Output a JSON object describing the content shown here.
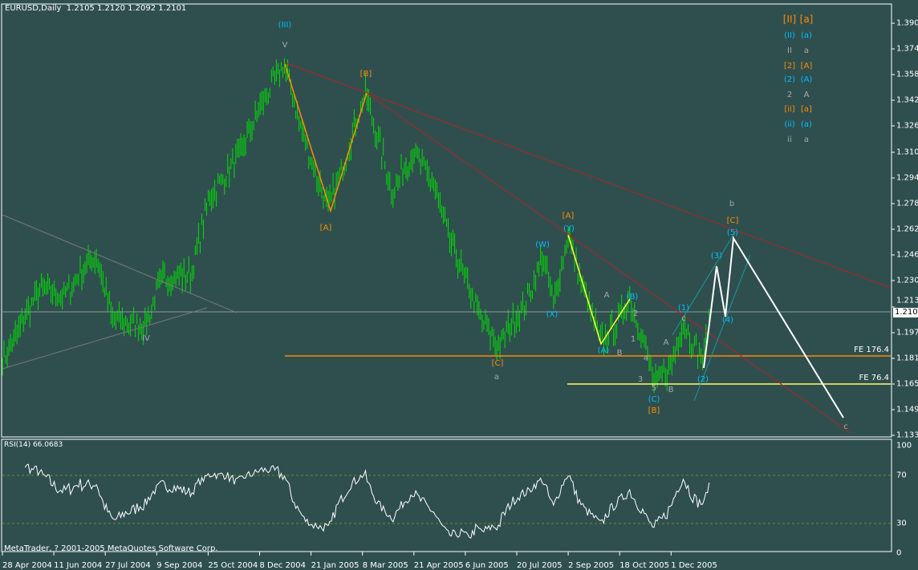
{
  "header": {
    "symbol_timeframe": "EURUSD,Daily",
    "ohlc": "1.2105 1.2120 1.2092 1.2101"
  },
  "copyright": "MetaTrader, ? 2001-2005 MetaQuotes Software Corp.",
  "colors": {
    "background": "#2f4f4f",
    "bars": "#00e000",
    "orange": "#ff8c00",
    "cyan": "#00bfff",
    "gray": "#a9a9a9",
    "trendline": "#b22222",
    "channel": "#1a9a9a"
  },
  "price_axis": [
    "1.3905",
    "1.3745",
    "1.3585",
    "1.3425",
    "1.3265",
    "1.3100",
    "1.2940",
    "1.2780",
    "1.2620",
    "1.2460",
    "1.2300",
    "1.2135",
    "1.1975",
    "1.1815",
    "1.1655",
    "1.1495",
    "1.1335"
  ],
  "current_price": "1.2101",
  "fibo": {
    "fe1764": "FE 176.4",
    "fe764": "FE 76.4"
  },
  "rsi": {
    "label": "RSI(14) 66.0683",
    "axis": [
      "100",
      "70",
      "30",
      "0"
    ]
  },
  "dates": [
    "28 Apr 2004",
    "11 Jun 2004",
    "27 Jul 2004",
    "9 Sep 2004",
    "25 Oct 2004",
    "8 Dec 2004",
    "21 Jan 2005",
    "8 Mar 2005",
    "21 Apr 2005",
    "6 Jun 2005",
    "20 Jul 2005",
    "2 Sep 2005",
    "18 Oct 2005",
    "1 Dec 2005"
  ],
  "wave_labels": {
    "III": "(III)",
    "V": "V",
    "B1": "[B]",
    "A1": "[A]",
    "IV": "IV",
    "C1": "[C]",
    "a1": "a",
    "A2": "[A]",
    "Y": "(Y)",
    "W": "(W)",
    "X": "(X)",
    "A3": "(A)",
    "B3": "(B)",
    "A4": "A",
    "B4": "B",
    "n2": "2",
    "n1": "1",
    "n4": "4",
    "n3": "3",
    "n5": "5",
    "C3": "(C)",
    "B2": "[B]",
    "A5": "A",
    "B5": "B",
    "p1": "(1)",
    "c1": "c",
    "p2": "(2)",
    "p3": "(3)",
    "p4": "(4)",
    "p5": "(5)",
    "C2": "[C]",
    "b": "b",
    "c2": "c"
  },
  "legend": [
    [
      "[II]",
      "[a]"
    ],
    [
      "(II)",
      "(a)"
    ],
    [
      "II",
      "a"
    ],
    [
      "[2]",
      "[A]"
    ],
    [
      "(2)",
      "(A)"
    ],
    [
      "2",
      "A"
    ],
    [
      "[ii]",
      "[a]"
    ],
    [
      "(ii)",
      "(a)"
    ],
    [
      "ii",
      "a"
    ]
  ],
  "chart_data": {
    "type": "ohlc",
    "symbol": "EURUSD",
    "timeframe": "Daily",
    "ylim": [
      1.1335,
      1.3905
    ],
    "price_path": [
      [
        0,
        1.18
      ],
      [
        8,
        1.195
      ],
      [
        23,
        1.225
      ],
      [
        38,
        1.22
      ],
      [
        48,
        1.235
      ],
      [
        58,
        1.245
      ],
      [
        68,
        1.205
      ],
      [
        88,
        1.2025
      ],
      [
        98,
        1.23
      ],
      [
        117,
        1.235
      ],
      [
        127,
        1.28
      ],
      [
        147,
        1.31
      ],
      [
        162,
        1.345
      ],
      [
        174,
        1.365
      ],
      [
        187,
        1.315
      ],
      [
        201,
        1.275
      ],
      [
        211,
        1.305
      ],
      [
        224,
        1.3475
      ],
      [
        231,
        1.32
      ],
      [
        241,
        1.285
      ],
      [
        253,
        1.31
      ],
      [
        266,
        1.29
      ],
      [
        276,
        1.255
      ],
      [
        286,
        1.23
      ],
      [
        296,
        1.205
      ],
      [
        306,
        1.189
      ],
      [
        315,
        1.205
      ],
      [
        325,
        1.22
      ],
      [
        333,
        1.245
      ],
      [
        340,
        1.215
      ],
      [
        349,
        1.259
      ],
      [
        357,
        1.23
      ],
      [
        369,
        1.191
      ],
      [
        380,
        1.205
      ],
      [
        387,
        1.2185
      ],
      [
        395,
        1.195
      ],
      [
        402,
        1.166
      ],
      [
        412,
        1.175
      ],
      [
        420,
        1.205
      ],
      [
        429,
        1.185
      ],
      [
        433,
        1.1825
      ],
      [
        436,
        1.2101
      ]
    ]
  }
}
